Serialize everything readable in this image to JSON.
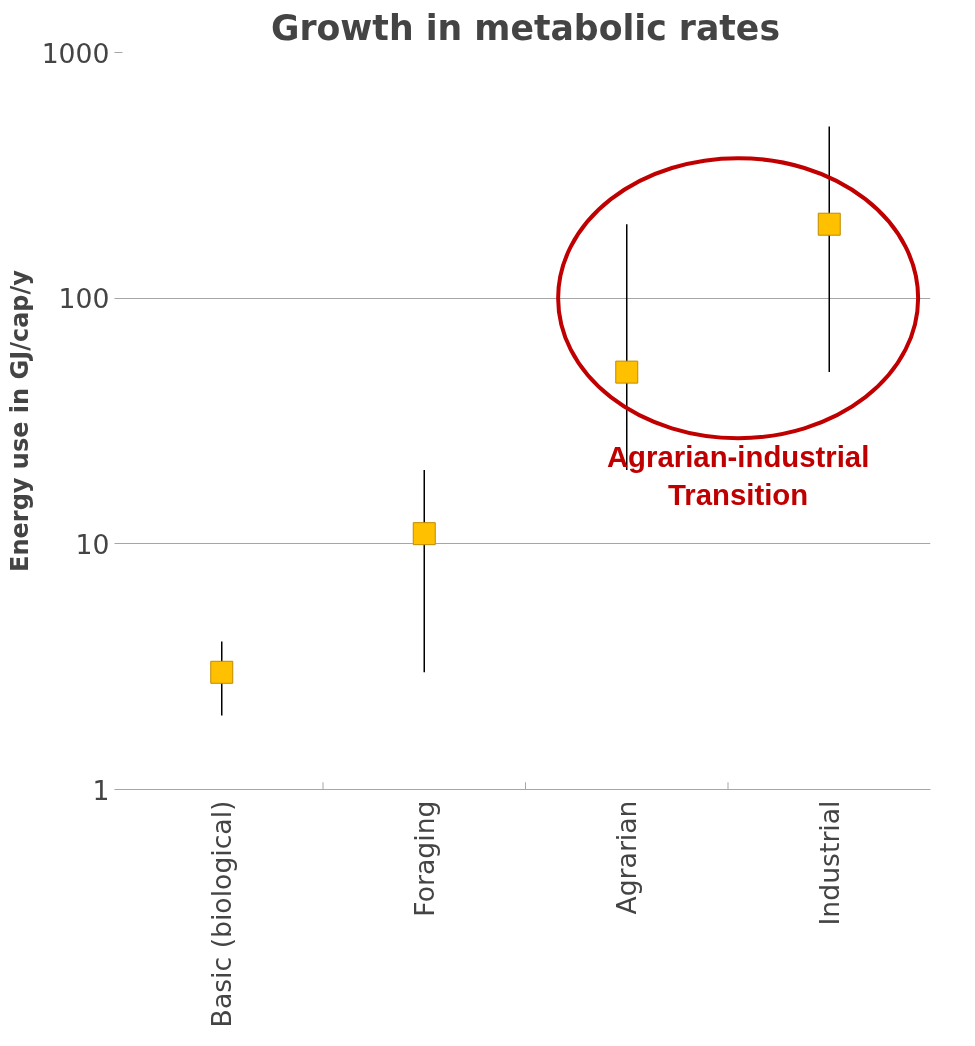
{
  "chart_data": {
    "type": "scatter",
    "title": "Growth in metabolic rates",
    "ylabel": "Energy use in GJ/cap/y",
    "categories": [
      "Basic (biological)",
      "Foraging",
      "Agrarian",
      "Industrial"
    ],
    "series": [
      {
        "color": "#ffc000",
        "values": [
          3,
          11,
          50,
          200
        ],
        "errors": [
          [
            2,
            4
          ],
          [
            3,
            20
          ],
          [
            20,
            200
          ],
          [
            50,
            500
          ]
        ]
      }
    ],
    "log": true,
    "ylim": [
      1,
      1000
    ],
    "yticks": [
      1,
      10,
      100,
      1000
    ],
    "grid": "y",
    "marker": "square",
    "annotations": [
      "Agrarian-industrial\nTransition"
    ]
  }
}
